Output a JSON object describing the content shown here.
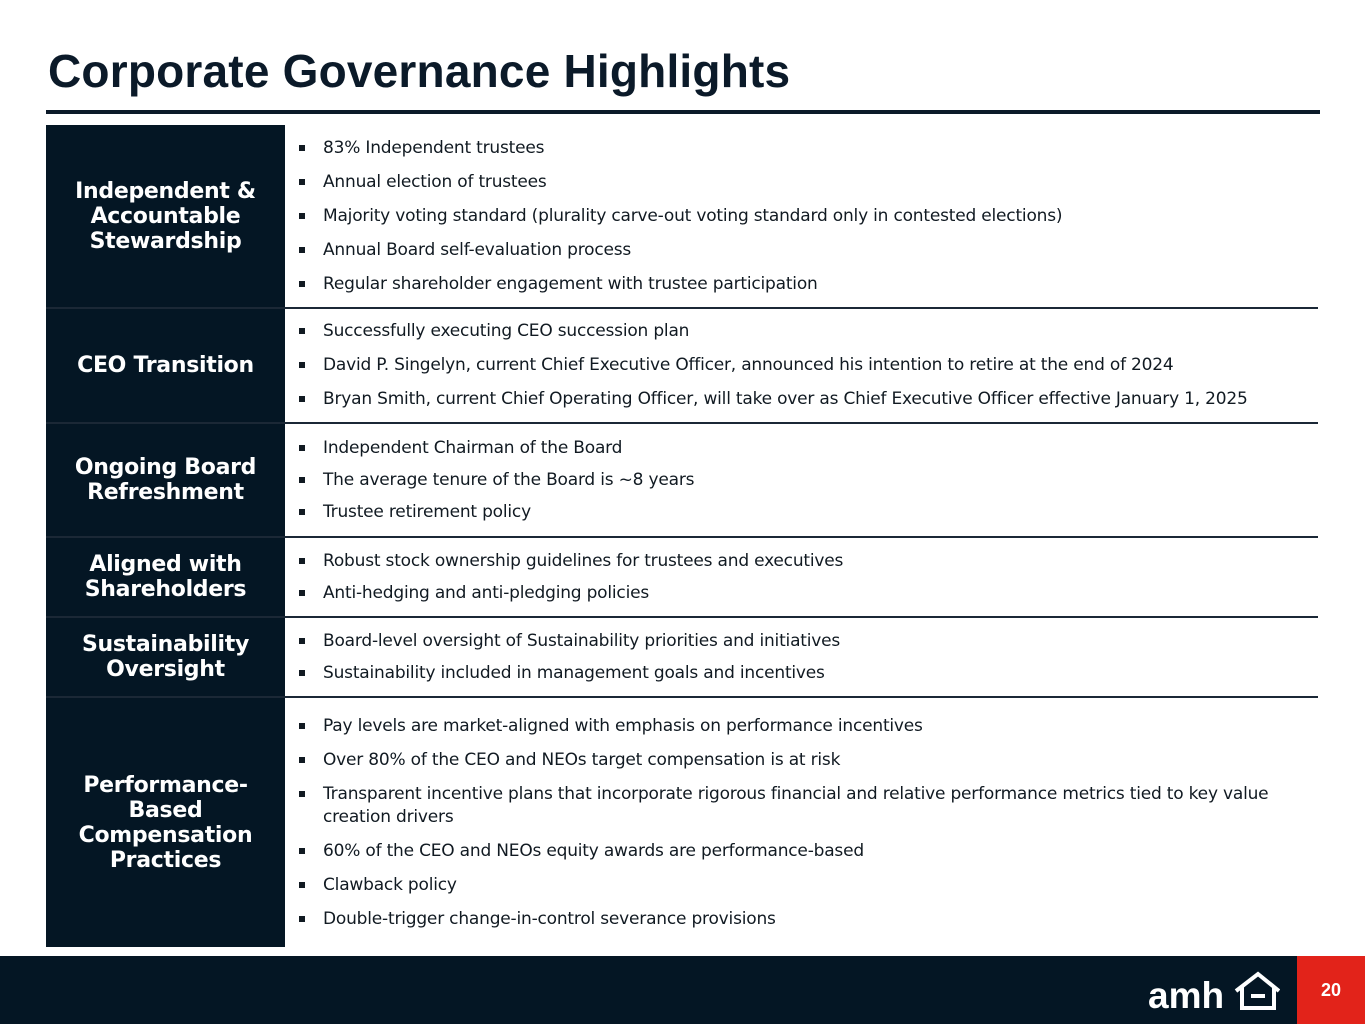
{
  "page": {
    "title": "Corporate Governance Highlights",
    "page_number": "20",
    "logo_text": "amh"
  },
  "colors": {
    "navy": "#041624",
    "accent_red": "#e2231a",
    "white": "#ffffff"
  },
  "sections": [
    {
      "label": "Independent & Accountable Stewardship",
      "items": [
        "83% Independent trustees",
        "Annual election of trustees",
        "Majority voting standard (plurality carve-out voting standard only in contested elections)",
        "Annual Board self-evaluation process",
        "Regular shareholder engagement with trustee participation"
      ]
    },
    {
      "label": "CEO Transition",
      "items": [
        "Successfully executing CEO succession plan",
        "David P. Singelyn, current Chief Executive Officer, announced his intention to retire at the end of 2024",
        "Bryan Smith, current Chief Operating Officer, will take over as Chief Executive Officer effective January 1, 2025"
      ]
    },
    {
      "label": "Ongoing Board Refreshment",
      "items": [
        "Independent Chairman of the Board",
        "The average tenure of the Board is ~8 years",
        "Trustee retirement policy"
      ]
    },
    {
      "label": "Aligned with Shareholders",
      "items": [
        "Robust stock ownership guidelines for trustees and executives",
        "Anti-hedging and anti-pledging policies"
      ]
    },
    {
      "label": "Sustainability Oversight",
      "items": [
        "Board-level oversight of Sustainability priorities and initiatives",
        "Sustainability included in management goals and incentives"
      ]
    },
    {
      "label": "Performance-Based Compensation Practices",
      "items": [
        "Pay levels are market-aligned with emphasis on performance incentives",
        "Over 80% of the CEO and NEOs target compensation is at risk",
        "Transparent incentive plans that incorporate rigorous financial and relative performance metrics tied to key value creation drivers",
        "60% of the CEO and NEOs equity awards are performance-based",
        "Clawback policy",
        "Double-trigger change-in-control severance provisions"
      ]
    }
  ]
}
